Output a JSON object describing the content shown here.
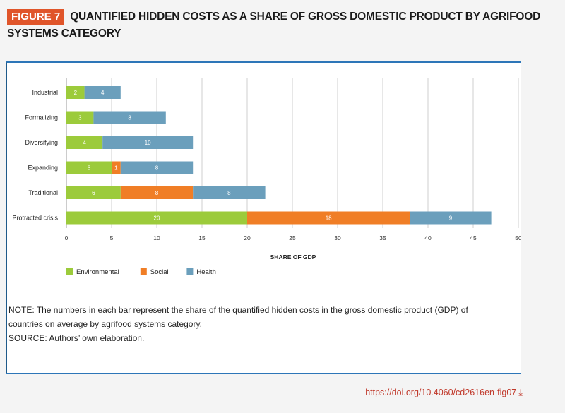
{
  "figure": {
    "badge": "FIGURE 7",
    "title": "QUANTIFIED HIDDEN COSTS AS A SHARE OF GROSS DOMESTIC PRODUCT BY AGRIFOOD SYSTEMS CATEGORY"
  },
  "chart_data": {
    "type": "bar",
    "orientation": "horizontal",
    "stacked": true,
    "categories": [
      "Industrial",
      "Formalizing",
      "Diversifying",
      "Expanding",
      "Traditional",
      "Protracted crisis"
    ],
    "series": [
      {
        "name": "Environmental",
        "color": "#9ccb3b",
        "values": [
          2,
          3,
          4,
          5,
          6,
          20
        ]
      },
      {
        "name": "Social",
        "color": "#f07e26",
        "values": [
          0,
          0,
          0,
          1,
          8,
          18
        ]
      },
      {
        "name": "Health",
        "color": "#6b9fbc",
        "values": [
          4,
          8,
          10,
          8,
          8,
          9
        ]
      }
    ],
    "xlabel": "SHARE OF GDP",
    "ylabel": "",
    "xlim": [
      0,
      50
    ],
    "xticks": [
      0,
      5,
      10,
      15,
      20,
      25,
      30,
      35,
      40,
      45,
      50
    ],
    "grid": true,
    "legend_position": "bottom-left"
  },
  "note": {
    "line1": "NOTE: The numbers in each bar represent the share of the quantified hidden costs in the gross domestic product (GDP) of",
    "line2": "countries on average by agrifood systems category.",
    "source": "SOURCE: Authors’ own elaboration."
  },
  "doi": {
    "text": "https://doi.org/10.4060/cd2616en-fig07",
    "icon": "download-icon"
  }
}
